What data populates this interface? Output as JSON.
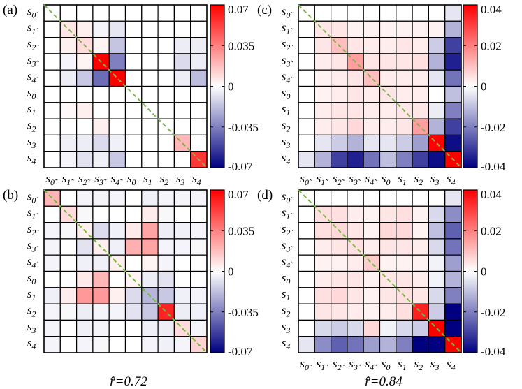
{
  "figure": {
    "bottom_labels": [
      {
        "panel": "b",
        "prefix": "r̂",
        "text": "r̂=0.72"
      },
      {
        "panel": "d",
        "prefix": "r̂",
        "text": "r̂=0.84"
      }
    ]
  },
  "chart_data": [
    {
      "type": "heatmap",
      "panel": "(a)",
      "row_labels": [
        "s0̃",
        "s1̃",
        "s2̃",
        "s3̃",
        "s4̃",
        "s0",
        "s1",
        "s2",
        "s3",
        "s4"
      ],
      "col_labels": [
        "s0̃",
        "s1̃",
        "s2̃",
        "s3̃",
        "s4̃",
        "s0",
        "s1",
        "s2",
        "s3",
        "s4"
      ],
      "colorbar": {
        "vmin": -0.07,
        "vmax": 0.07,
        "ticks": [
          "0.07",
          "0.035",
          "0",
          "-0.035",
          "-0.07"
        ],
        "tick_values": [
          0.07,
          0.035,
          0,
          -0.035,
          -0.07
        ]
      },
      "show_col_labels": true,
      "diagonal": "dashed green",
      "values": [
        [
          0,
          0,
          0,
          0,
          0,
          0,
          0,
          0,
          0,
          0
        ],
        [
          0,
          0.007,
          0.004,
          -0.003,
          -0.007,
          0,
          0,
          0,
          0,
          0
        ],
        [
          0,
          0.004,
          0.01,
          0.003,
          -0.016,
          0,
          0,
          0,
          -0.005,
          -0.005
        ],
        [
          0,
          -0.003,
          0.003,
          0.07,
          -0.035,
          0,
          0,
          0,
          -0.01,
          -0.005
        ],
        [
          0,
          -0.005,
          -0.015,
          -0.04,
          0.07,
          0,
          0,
          0,
          -0.005,
          -0.018
        ],
        [
          0,
          0,
          0,
          0,
          0,
          0,
          0,
          0,
          0,
          0
        ],
        [
          0,
          0.002,
          0.004,
          0,
          0,
          0,
          0,
          0,
          0,
          0
        ],
        [
          0,
          0,
          0,
          0.004,
          0,
          0,
          0,
          0,
          0,
          0
        ],
        [
          0,
          -0.004,
          -0.005,
          -0.01,
          -0.004,
          0,
          0,
          0,
          0.02,
          0
        ],
        [
          0,
          -0.003,
          -0.008,
          -0.004,
          -0.015,
          0,
          0,
          0,
          0,
          0.055
        ]
      ]
    },
    {
      "type": "heatmap",
      "panel": "(b)",
      "row_labels": [
        "s0̃",
        "s1̃",
        "s2̃",
        "s3̃",
        "s4̃",
        "s0",
        "s1",
        "s2",
        "s3",
        "s4"
      ],
      "col_labels": [
        "s0̃",
        "s1̃",
        "s2̃",
        "s3̃",
        "s4̃",
        "s0",
        "s1",
        "s2",
        "s3",
        "s4"
      ],
      "colorbar": {
        "vmin": -0.07,
        "vmax": 0.07,
        "ticks": [
          "0.07",
          "0.035",
          "0",
          "-0.035",
          "-0.07"
        ],
        "tick_values": [
          0.07,
          0.035,
          0,
          -0.035,
          -0.07
        ]
      },
      "show_col_labels": false,
      "diagonal": "dashed green",
      "values": [
        [
          0.02,
          0,
          -0.003,
          -0.003,
          -0.003,
          0,
          -0.004,
          -0.003,
          -0.003,
          -0.003
        ],
        [
          0,
          0.01,
          -0.002,
          0,
          0,
          0,
          0.005,
          -0.002,
          0,
          0
        ],
        [
          -0.003,
          -0.002,
          0.004,
          -0.01,
          -0.004,
          0.006,
          0.025,
          -0.005,
          -0.004,
          -0.003
        ],
        [
          -0.003,
          0,
          -0.008,
          0.004,
          -0.004,
          0.022,
          0.025,
          -0.003,
          -0.003,
          -0.002
        ],
        [
          -0.003,
          0,
          -0.004,
          -0.004,
          0.004,
          0,
          0.003,
          -0.003,
          0,
          0
        ],
        [
          0,
          0,
          0.006,
          0.02,
          0,
          0.003,
          -0.005,
          -0.008,
          0,
          0
        ],
        [
          -0.004,
          0.005,
          0.028,
          0.028,
          0.004,
          -0.01,
          -0.02,
          -0.015,
          -0.004,
          -0.003
        ],
        [
          -0.003,
          -0.002,
          -0.005,
          -0.003,
          -0.003,
          -0.008,
          -0.015,
          0.06,
          -0.005,
          -0.004
        ],
        [
          -0.003,
          0,
          -0.004,
          -0.003,
          0,
          0,
          -0.004,
          -0.005,
          0.01,
          -0.003
        ],
        [
          -0.003,
          0,
          -0.003,
          -0.002,
          0,
          0,
          -0.003,
          -0.004,
          -0.003,
          0.012
        ]
      ]
    },
    {
      "type": "heatmap",
      "panel": "(c)",
      "row_labels": [
        "s0̃",
        "s1̃",
        "s2̃",
        "s3̃",
        "s4̃",
        "s0",
        "s1",
        "s2",
        "s3",
        "s4"
      ],
      "col_labels": [
        "s0̃",
        "s1̃",
        "s2̃",
        "s3̃",
        "s4̃",
        "s0",
        "s1",
        "s2",
        "s3",
        "s4"
      ],
      "colorbar": {
        "vmin": -0.04,
        "vmax": 0.04,
        "ticks": [
          "0.04",
          "0.02",
          "0",
          "-0.02",
          "-0.04"
        ],
        "tick_values": [
          0.04,
          0.02,
          0,
          -0.02,
          -0.04
        ]
      },
      "show_col_labels": true,
      "diagonal": "dashed green",
      "values": [
        [
          0,
          0,
          0,
          0,
          0,
          0,
          0,
          0,
          0,
          -0.004
        ],
        [
          0,
          0.004,
          0.004,
          0.002,
          0.002,
          0.002,
          0.002,
          0.002,
          0.002,
          -0.012
        ],
        [
          0,
          0.004,
          0.01,
          0.004,
          0.003,
          0.003,
          0.004,
          0.003,
          -0.008,
          -0.03
        ],
        [
          0,
          0.003,
          0.004,
          0.015,
          0.004,
          0.004,
          0.004,
          0.005,
          -0.012,
          -0.035
        ],
        [
          0,
          0.002,
          0.003,
          0.004,
          0.01,
          0.003,
          0.003,
          0.003,
          -0.004,
          -0.022
        ],
        [
          0,
          0.002,
          0.003,
          0.004,
          0.003,
          0.004,
          0.003,
          0.003,
          0,
          -0.01
        ],
        [
          0,
          0.003,
          0.004,
          0.004,
          0.003,
          0.003,
          0.004,
          0.004,
          -0.003,
          -0.02
        ],
        [
          0,
          0.003,
          0.004,
          0.006,
          0.003,
          0.003,
          0.004,
          0.015,
          -0.012,
          -0.03
        ],
        [
          0,
          -0.004,
          -0.008,
          -0.012,
          -0.004,
          -0.004,
          -0.008,
          -0.015,
          0.04,
          -0.038
        ],
        [
          -0.004,
          -0.012,
          -0.03,
          -0.035,
          -0.022,
          -0.01,
          -0.02,
          -0.03,
          -0.038,
          0.04
        ]
      ]
    },
    {
      "type": "heatmap",
      "panel": "(d)",
      "row_labels": [
        "s0̃",
        "s1̃",
        "s2̃",
        "s3̃",
        "s4̃",
        "s0",
        "s1",
        "s2",
        "s3",
        "s4"
      ],
      "col_labels": [
        "s0̃",
        "s1̃",
        "s2̃",
        "s3̃",
        "s4̃",
        "s0",
        "s1",
        "s2",
        "s3",
        "s4"
      ],
      "colorbar": {
        "vmin": -0.04,
        "vmax": 0.04,
        "ticks": [
          "0.04",
          "0.02",
          "0",
          "-0.02",
          "-0.04"
        ],
        "tick_values": [
          0.04,
          0.02,
          0,
          -0.02,
          -0.04
        ]
      },
      "show_col_labels": true,
      "diagonal": "dashed green",
      "values": [
        [
          0,
          0,
          0,
          0,
          0,
          0,
          0,
          0,
          0,
          -0.004
        ],
        [
          0,
          0.005,
          0.005,
          0.003,
          0.002,
          0.004,
          0.005,
          0.002,
          -0.006,
          -0.018
        ],
        [
          0,
          0.005,
          0.006,
          0.004,
          0.002,
          0.006,
          0.006,
          0.002,
          -0.01,
          -0.025
        ],
        [
          0,
          0.003,
          0.004,
          0.005,
          0.003,
          0.004,
          0.004,
          0.003,
          -0.006,
          -0.022
        ],
        [
          0,
          0.002,
          0.002,
          0.003,
          0.008,
          0.002,
          0.002,
          0.002,
          -0.002,
          -0.015
        ],
        [
          0,
          0.003,
          0.004,
          0.004,
          0.002,
          0.004,
          0.004,
          0.003,
          -0.002,
          -0.012
        ],
        [
          0,
          0.005,
          0.006,
          0.004,
          0.002,
          0.004,
          0.005,
          0.004,
          -0.006,
          -0.02
        ],
        [
          0,
          0.004,
          0.004,
          0.003,
          0.002,
          0.003,
          0.005,
          0.035,
          -0.008,
          -0.04
        ],
        [
          0,
          -0.006,
          -0.008,
          -0.006,
          0.006,
          -0.002,
          -0.006,
          -0.008,
          0.04,
          -0.04
        ],
        [
          -0.004,
          -0.018,
          -0.025,
          -0.022,
          -0.015,
          -0.012,
          -0.02,
          -0.04,
          -0.04,
          0.04
        ]
      ]
    }
  ]
}
